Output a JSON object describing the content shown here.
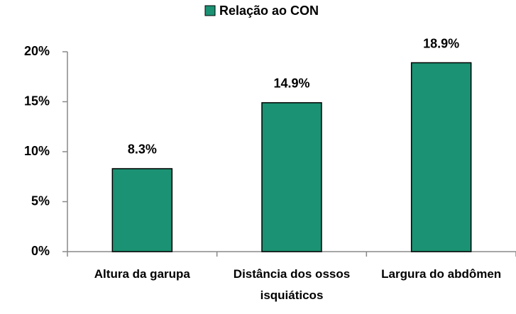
{
  "chart_data": {
    "type": "bar",
    "categories": [
      "Altura da garupa",
      "Distância dos ossos isquiáticos",
      "Largura do abdômen"
    ],
    "series": [
      {
        "name": "Relação ao CON",
        "color": "#1b9273",
        "values": [
          8.3,
          14.9,
          18.9
        ],
        "value_labels": [
          "8.3%",
          "14.9%",
          "18.9%"
        ]
      }
    ],
    "ylim": [
      0,
      20
    ],
    "yticks": [
      {
        "value": 0,
        "label": "0%"
      },
      {
        "value": 5,
        "label": "5%"
      },
      {
        "value": 10,
        "label": "10%"
      },
      {
        "value": 15,
        "label": "15%"
      },
      {
        "value": 20,
        "label": "20%"
      }
    ],
    "legend": "top"
  }
}
